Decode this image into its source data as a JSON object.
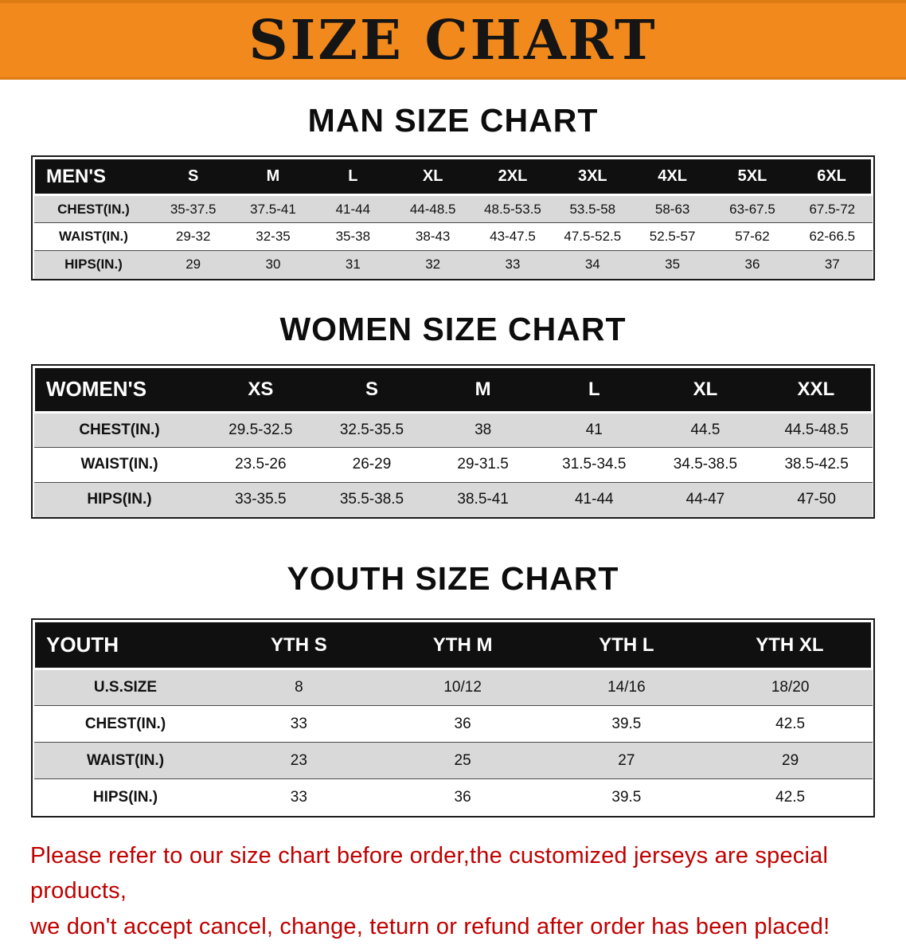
{
  "banner": {
    "title": "SIZE CHART",
    "bg_color": "#F2891D",
    "text_color": "#151515"
  },
  "sections": [
    {
      "heading": "MAN SIZE CHART",
      "table": {
        "header": [
          "MEN'S",
          "S",
          "M",
          "L",
          "XL",
          "2XL",
          "3XL",
          "4XL",
          "5XL",
          "6XL"
        ],
        "rows": [
          [
            "CHEST(IN.)",
            "35-37.5",
            "37.5-41",
            "41-44",
            "44-48.5",
            "48.5-53.5",
            "53.5-58",
            "58-63",
            "63-67.5",
            "67.5-72"
          ],
          [
            "WAIST(IN.)",
            "29-32",
            "32-35",
            "35-38",
            "38-43",
            "43-47.5",
            "47.5-52.5",
            "52.5-57",
            "57-62",
            "62-66.5"
          ],
          [
            "HIPS(IN.)",
            "29",
            "30",
            "31",
            "32",
            "33",
            "34",
            "35",
            "36",
            "37"
          ]
        ]
      }
    },
    {
      "heading": "WOMEN SIZE CHART",
      "table": {
        "header": [
          "WOMEN'S",
          "XS",
          "S",
          "M",
          "L",
          "XL",
          "XXL"
        ],
        "rows": [
          [
            "CHEST(IN.)",
            "29.5-32.5",
            "32.5-35.5",
            "38",
            "41",
            "44.5",
            "44.5-48.5"
          ],
          [
            "WAIST(IN.)",
            "23.5-26",
            "26-29",
            "29-31.5",
            "31.5-34.5",
            "34.5-38.5",
            "38.5-42.5"
          ],
          [
            "HIPS(IN.)",
            "33-35.5",
            "35.5-38.5",
            "38.5-41",
            "41-44",
            "44-47",
            "47-50"
          ]
        ]
      }
    },
    {
      "heading": "YOUTH SIZE CHART",
      "table": {
        "header": [
          "YOUTH",
          "YTH S",
          "YTH M",
          "YTH L",
          "YTH XL"
        ],
        "rows": [
          [
            "U.S.SIZE",
            "8",
            "10/12",
            "14/16",
            "18/20"
          ],
          [
            "CHEST(IN.)",
            "33",
            "36",
            "39.5",
            "42.5"
          ],
          [
            "WAIST(IN.)",
            "23",
            "25",
            "27",
            "29"
          ],
          [
            "HIPS(IN.)",
            "33",
            "36",
            "39.5",
            "42.5"
          ]
        ]
      }
    }
  ],
  "footer": {
    "text_color": "#C00000",
    "lines": [
      "Please refer to our size chart before order,the customized jerseys are special products,",
      "we don't accept cancel, change, teturn or refund after order has been placed!"
    ]
  }
}
